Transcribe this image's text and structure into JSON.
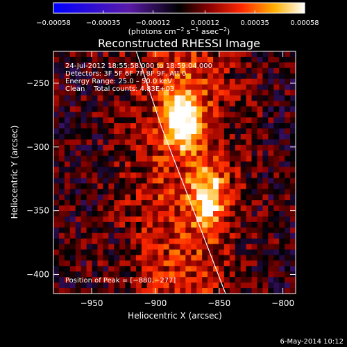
{
  "chart_data": {
    "type": "heatmap",
    "title": "Reconstructed RHESSI Image",
    "xlabel": "Heliocentric X (arcsec)",
    "ylabel": "Heliocentric Y (arcsec)",
    "xlim": [
      -980,
      -790
    ],
    "ylim": [
      -415,
      -225
    ],
    "x_ticks": [
      -950,
      -900,
      -850,
      -800
    ],
    "x_tick_labels": [
      "−950",
      "−900",
      "−850",
      "−800"
    ],
    "y_ticks": [
      -250,
      -300,
      -350,
      -400
    ],
    "y_tick_labels": [
      "−250",
      "−300",
      "−350",
      "−400"
    ],
    "colorbar": {
      "range": [
        -0.00058,
        0.00058
      ],
      "ticks": [
        -0.00058,
        -0.00035,
        -0.00012,
        0.00012,
        0.00035,
        0.00058
      ],
      "tick_labels": [
        "−0.00058",
        "−0.00035",
        "−0.00012",
        "0.00012",
        "0.00035",
        "0.00058"
      ],
      "unit_parts": [
        "(photons cm",
        "−2",
        " s",
        "−1",
        " asec",
        "−2",
        ")"
      ]
    },
    "annotations": [
      "24-Jul-2012 18:55:58.000 to 18:59:04.000",
      "Detectors: 3F 5F 6F 7F 8F 9F, Att 0",
      "Energy Range: 25.0 – 50.0 keV",
      "Clean    Total counts: 4.83E+03"
    ],
    "peak_label": "Position of Peak = [−880,−277]",
    "peak_position": [
      -880,
      -277
    ],
    "sources": [
      {
        "x": -880,
        "y": -277,
        "intensity": 0.00058
      },
      {
        "x": -858,
        "y": -340,
        "intensity": 0.00045
      }
    ],
    "limb": [
      [
        -915,
        -225
      ],
      [
        -895,
        -285
      ],
      [
        -870,
        -350
      ],
      [
        -845,
        -415
      ]
    ],
    "footer": "6-May-2014 10:12"
  }
}
